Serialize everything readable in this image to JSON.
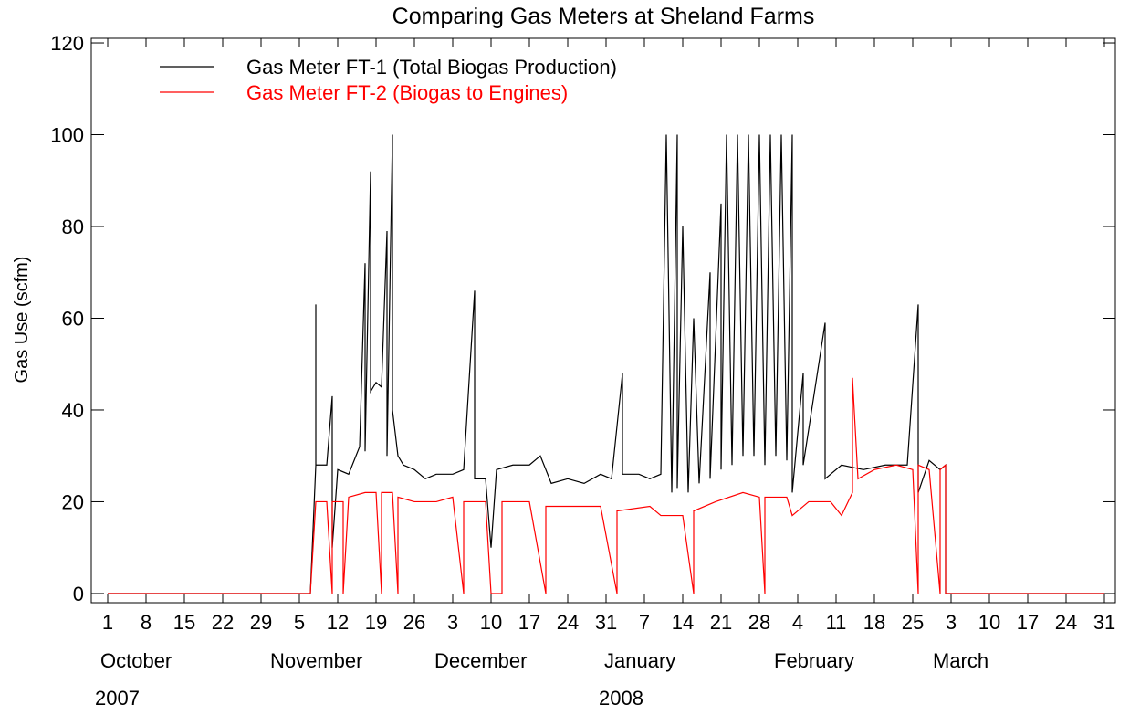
{
  "chart_data": {
    "type": "line",
    "title": "Comparing Gas Meters at Sheland Farms",
    "y_label": "Gas Use (scfm)",
    "ylim": [
      -2,
      121
    ],
    "yticks": [
      0,
      20,
      40,
      60,
      80,
      100,
      120
    ],
    "xlim": [
      "2007-09-28",
      "2008-04-02"
    ],
    "xticks": [
      {
        "value": "2007-10-01",
        "label": "1"
      },
      {
        "value": "2007-10-08",
        "label": "8"
      },
      {
        "value": "2007-10-15",
        "label": "15"
      },
      {
        "value": "2007-10-22",
        "label": "22"
      },
      {
        "value": "2007-10-29",
        "label": "29"
      },
      {
        "value": "2007-11-05",
        "label": "5"
      },
      {
        "value": "2007-11-12",
        "label": "12"
      },
      {
        "value": "2007-11-19",
        "label": "19"
      },
      {
        "value": "2007-11-26",
        "label": "26"
      },
      {
        "value": "2007-12-03",
        "label": "3"
      },
      {
        "value": "2007-12-10",
        "label": "10"
      },
      {
        "value": "2007-12-17",
        "label": "17"
      },
      {
        "value": "2007-12-24",
        "label": "24"
      },
      {
        "value": "2007-12-31",
        "label": "31"
      },
      {
        "value": "2008-01-07",
        "label": "7"
      },
      {
        "value": "2008-01-14",
        "label": "14"
      },
      {
        "value": "2008-01-21",
        "label": "21"
      },
      {
        "value": "2008-01-28",
        "label": "28"
      },
      {
        "value": "2008-02-04",
        "label": "4"
      },
      {
        "value": "2008-02-11",
        "label": "11"
      },
      {
        "value": "2008-02-18",
        "label": "18"
      },
      {
        "value": "2008-02-25",
        "label": "25"
      },
      {
        "value": "2008-03-03",
        "label": "3"
      },
      {
        "value": "2008-03-10",
        "label": "10"
      },
      {
        "value": "2008-03-17",
        "label": "17"
      },
      {
        "value": "2008-03-24",
        "label": "24"
      },
      {
        "value": "2008-03-31",
        "label": "31"
      }
    ],
    "month_labels": [
      {
        "value": "2007-10-01",
        "label": "October"
      },
      {
        "value": "2007-11-01",
        "label": "November"
      },
      {
        "value": "2007-12-01",
        "label": "December"
      },
      {
        "value": "2008-01-01",
        "label": "January"
      },
      {
        "value": "2008-02-01",
        "label": "February"
      },
      {
        "value": "2008-03-01",
        "label": "March"
      }
    ],
    "year_labels": [
      {
        "value": "2007-10-01",
        "label": "2007"
      },
      {
        "value": "2008-01-01",
        "label": "2008"
      }
    ],
    "legend": "upper left",
    "series": [
      {
        "name": "Gas Meter FT-1 (Total Biogas Production)",
        "color": "#000000",
        "x": [
          "2007-10-01",
          "2007-11-07",
          "2007-11-08",
          "2007-11-08",
          "2007-11-08",
          "2007-11-10",
          "2007-11-11",
          "2007-11-11",
          "2007-11-12",
          "2007-11-14",
          "2007-11-15",
          "2007-11-16",
          "2007-11-17",
          "2007-11-17",
          "2007-11-18",
          "2007-11-18",
          "2007-11-19",
          "2007-11-20",
          "2007-11-21",
          "2007-11-21",
          "2007-11-22",
          "2007-11-22",
          "2007-11-23",
          "2007-11-24",
          "2007-11-26",
          "2007-11-28",
          "2007-11-30",
          "2007-12-03",
          "2007-12-05",
          "2007-12-07",
          "2007-12-07",
          "2007-12-09",
          "2007-12-10",
          "2007-12-11",
          "2007-12-14",
          "2007-12-17",
          "2007-12-19",
          "2007-12-21",
          "2007-12-24",
          "2007-12-27",
          "2007-12-30",
          "2008-01-01",
          "2008-01-03",
          "2008-01-03",
          "2008-01-06",
          "2008-01-08",
          "2008-01-10",
          "2008-01-11",
          "2008-01-12",
          "2008-01-13",
          "2008-01-13",
          "2008-01-14",
          "2008-01-15",
          "2008-01-16",
          "2008-01-17",
          "2008-01-19",
          "2008-01-19",
          "2008-01-21",
          "2008-01-21",
          "2008-01-22",
          "2008-01-23",
          "2008-01-24",
          "2008-01-25",
          "2008-01-26",
          "2008-01-27",
          "2008-01-28",
          "2008-01-29",
          "2008-01-30",
          "2008-01-31",
          "2008-02-01",
          "2008-02-02",
          "2008-02-03",
          "2008-02-03",
          "2008-02-05",
          "2008-02-05",
          "2008-02-09",
          "2008-02-09",
          "2008-02-12",
          "2008-02-16",
          "2008-02-20",
          "2008-02-24",
          "2008-02-26",
          "2008-02-26",
          "2008-02-28",
          "2008-03-01",
          "2008-03-02",
          "2008-03-02",
          "2008-03-31"
        ],
        "values": [
          0,
          0,
          28,
          63,
          28,
          28,
          43,
          10,
          27,
          26,
          29,
          32,
          72,
          31,
          92,
          44,
          46,
          45,
          79,
          30,
          100,
          40,
          30,
          28,
          27,
          25,
          26,
          26,
          27,
          66,
          25,
          25,
          10,
          27,
          28,
          28,
          30,
          24,
          25,
          24,
          26,
          25,
          48,
          26,
          26,
          25,
          26,
          100,
          22,
          100,
          23,
          80,
          22,
          60,
          24,
          70,
          25,
          85,
          27,
          100,
          28,
          100,
          30,
          100,
          30,
          100,
          28,
          100,
          30,
          100,
          29,
          100,
          22,
          48,
          28,
          59,
          25,
          28,
          27,
          28,
          28,
          63,
          22,
          29,
          27,
          28,
          0,
          0
        ]
      },
      {
        "name": "Gas Meter FT-2 (Biogas to Engines)",
        "color": "#ff0000",
        "x": [
          "2007-10-01",
          "2007-11-07",
          "2007-11-08",
          "2007-11-10",
          "2007-11-11",
          "2007-11-11",
          "2007-11-13",
          "2007-11-13",
          "2007-11-14",
          "2007-11-17",
          "2007-11-19",
          "2007-11-20",
          "2007-11-20",
          "2007-11-22",
          "2007-11-23",
          "2007-11-23",
          "2007-11-26",
          "2007-11-30",
          "2007-12-03",
          "2007-12-05",
          "2007-12-05",
          "2007-12-09",
          "2007-12-10",
          "2007-12-12",
          "2007-12-12",
          "2007-12-17",
          "2007-12-20",
          "2007-12-20",
          "2007-12-26",
          "2007-12-30",
          "2008-01-02",
          "2008-01-02",
          "2008-01-08",
          "2008-01-10",
          "2008-01-14",
          "2008-01-16",
          "2008-01-16",
          "2008-01-20",
          "2008-01-25",
          "2008-01-28",
          "2008-01-29",
          "2008-01-29",
          "2008-02-02",
          "2008-02-03",
          "2008-02-06",
          "2008-02-10",
          "2008-02-12",
          "2008-02-14",
          "2008-02-14",
          "2008-02-15",
          "2008-02-18",
          "2008-02-22",
          "2008-02-25",
          "2008-02-26",
          "2008-02-26",
          "2008-02-28",
          "2008-03-01",
          "2008-03-01",
          "2008-03-02",
          "2008-03-02",
          "2008-03-31"
        ],
        "values": [
          0,
          0,
          20,
          20,
          0,
          20,
          20,
          0,
          21,
          22,
          22,
          0,
          22,
          22,
          0,
          21,
          20,
          20,
          21,
          0,
          20,
          20,
          0,
          0,
          20,
          20,
          0,
          19,
          19,
          19,
          0,
          18,
          19,
          17,
          17,
          0,
          18,
          20,
          22,
          21,
          0,
          21,
          21,
          17,
          20,
          20,
          17,
          22,
          47,
          25,
          27,
          28,
          27,
          0,
          28,
          27,
          0,
          27,
          28,
          0,
          0
        ]
      }
    ]
  }
}
